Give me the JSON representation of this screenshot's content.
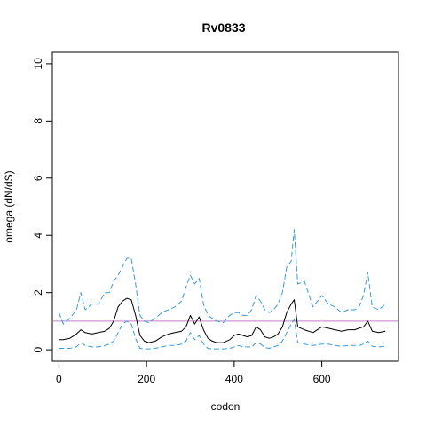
{
  "chart_data": {
    "type": "line",
    "title": "Rv0833",
    "xlabel": "codon",
    "ylabel": "omega (dN/dS)",
    "xlim": [
      -15,
      775
    ],
    "ylim": [
      -0.4,
      10.4
    ],
    "xticks": [
      0,
      200,
      400,
      600
    ],
    "yticks": [
      0,
      2,
      4,
      6,
      8,
      10
    ],
    "grid": false,
    "legend": "none",
    "colors": {
      "mean": "#000000",
      "ci": "#3a9ad9",
      "reference": "#c080c0"
    },
    "reference_line": 1,
    "series": [
      {
        "role": "upper-ci",
        "style": "dashed",
        "x": [
          0,
          10,
          25,
          40,
          50,
          60,
          75,
          90,
          105,
          115,
          125,
          135,
          145,
          155,
          165,
          175,
          185,
          195,
          205,
          220,
          235,
          250,
          265,
          280,
          290,
          300,
          310,
          320,
          330,
          340,
          350,
          360,
          375,
          390,
          400,
          410,
          420,
          430,
          440,
          450,
          460,
          470,
          480,
          490,
          500,
          510,
          520,
          530,
          537,
          545,
          560,
          580,
          600,
          615,
          630,
          645,
          660,
          675,
          685,
          695,
          705,
          715,
          730,
          745
        ],
        "y": [
          1.3,
          0.9,
          1.1,
          1.4,
          2.0,
          1.4,
          1.6,
          1.6,
          2.0,
          2.0,
          2.4,
          2.6,
          2.9,
          3.2,
          3.2,
          2.3,
          1.2,
          1.0,
          0.95,
          1.1,
          1.3,
          1.4,
          1.5,
          1.7,
          2.2,
          2.6,
          2.3,
          2.5,
          1.6,
          1.2,
          1.1,
          1.0,
          0.95,
          1.2,
          1.3,
          1.3,
          1.2,
          1.2,
          1.4,
          1.9,
          1.7,
          1.4,
          1.3,
          1.4,
          1.6,
          2.0,
          2.9,
          3.1,
          4.2,
          2.3,
          2.4,
          1.5,
          1.9,
          1.6,
          1.5,
          1.3,
          1.4,
          1.4,
          1.5,
          1.9,
          2.7,
          1.5,
          1.4,
          1.6
        ]
      },
      {
        "role": "mean",
        "style": "solid",
        "x": [
          0,
          10,
          25,
          40,
          50,
          60,
          75,
          90,
          105,
          115,
          125,
          135,
          145,
          155,
          165,
          175,
          185,
          195,
          205,
          220,
          235,
          250,
          265,
          280,
          290,
          300,
          310,
          320,
          330,
          340,
          350,
          360,
          375,
          390,
          400,
          410,
          420,
          430,
          440,
          450,
          460,
          470,
          480,
          490,
          500,
          510,
          520,
          530,
          537,
          545,
          560,
          580,
          600,
          615,
          630,
          645,
          660,
          675,
          685,
          695,
          705,
          715,
          730,
          745
        ],
        "y": [
          0.35,
          0.35,
          0.4,
          0.55,
          0.7,
          0.6,
          0.55,
          0.6,
          0.65,
          0.75,
          1.0,
          1.5,
          1.7,
          1.8,
          1.75,
          1.2,
          0.5,
          0.3,
          0.25,
          0.3,
          0.45,
          0.55,
          0.6,
          0.65,
          0.8,
          1.2,
          0.9,
          1.15,
          0.7,
          0.4,
          0.3,
          0.25,
          0.25,
          0.35,
          0.5,
          0.55,
          0.5,
          0.45,
          0.5,
          0.8,
          0.7,
          0.45,
          0.4,
          0.45,
          0.55,
          0.8,
          1.3,
          1.6,
          1.75,
          0.8,
          0.7,
          0.6,
          0.8,
          0.75,
          0.7,
          0.65,
          0.7,
          0.7,
          0.75,
          0.8,
          1.0,
          0.65,
          0.6,
          0.65
        ]
      },
      {
        "role": "lower-ci",
        "style": "dashed",
        "x": [
          0,
          10,
          25,
          40,
          50,
          60,
          75,
          90,
          105,
          115,
          125,
          135,
          145,
          155,
          165,
          175,
          185,
          195,
          205,
          220,
          235,
          250,
          265,
          280,
          290,
          300,
          310,
          320,
          330,
          340,
          350,
          360,
          375,
          390,
          400,
          410,
          420,
          430,
          440,
          450,
          460,
          470,
          480,
          490,
          500,
          510,
          520,
          530,
          537,
          545,
          560,
          580,
          600,
          615,
          630,
          645,
          660,
          675,
          685,
          695,
          705,
          715,
          730,
          745
        ],
        "y": [
          0.05,
          0.05,
          0.05,
          0.1,
          0.25,
          0.15,
          0.1,
          0.1,
          0.15,
          0.2,
          0.3,
          0.6,
          0.9,
          1.0,
          0.9,
          0.4,
          0.05,
          0.03,
          0.03,
          0.05,
          0.1,
          0.15,
          0.15,
          0.2,
          0.3,
          0.6,
          0.35,
          0.5,
          0.2,
          0.05,
          0.03,
          0.03,
          0.03,
          0.05,
          0.1,
          0.15,
          0.1,
          0.1,
          0.1,
          0.25,
          0.2,
          0.08,
          0.05,
          0.1,
          0.15,
          0.3,
          0.6,
          0.9,
          1.05,
          0.25,
          0.2,
          0.15,
          0.2,
          0.2,
          0.15,
          0.12,
          0.15,
          0.15,
          0.15,
          0.2,
          0.3,
          0.12,
          0.1,
          0.12
        ]
      }
    ]
  }
}
